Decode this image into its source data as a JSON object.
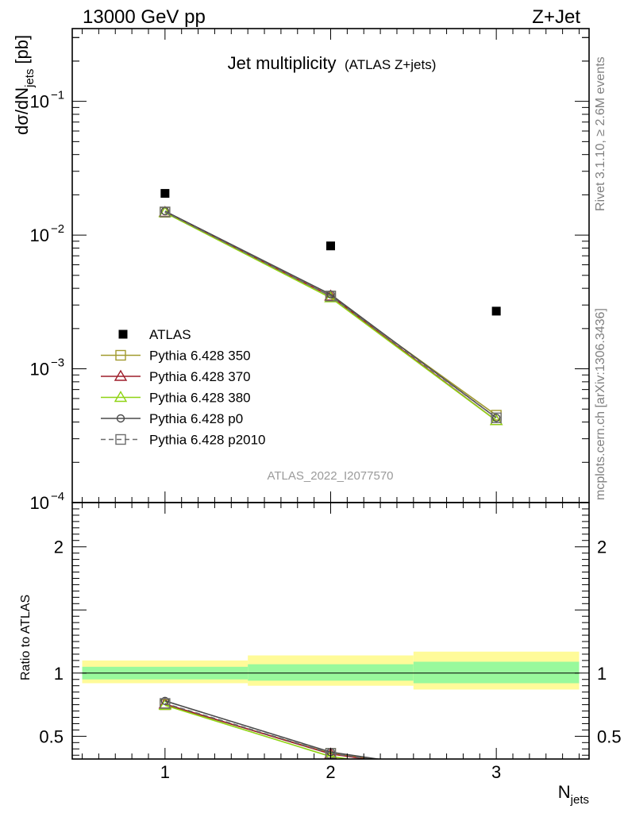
{
  "header": {
    "energy_label": "13000 GeV pp",
    "process_label": "Z+Jet"
  },
  "side_labels": {
    "rivet": "Rivet 3.1.10, ≥ 2.6M events",
    "mcplots": "mcplots.cern.ch [arXiv:1306.3436]"
  },
  "chart_data": {
    "type": "scatter",
    "title": "Jet multiplicity",
    "subtitle": "(ATLAS Z+jets)",
    "analysis_id": "ATLAS_2022_I2077570",
    "xlabel": "N",
    "xlabel_sub": "jets",
    "ylabel_pre": "dσ/dN",
    "ylabel_sub": "jets",
    "ylabel_post": "[pb]",
    "ratio_ylabel": "Ratio to ATLAS",
    "x": [
      1,
      2,
      3
    ],
    "xlim": [
      0.44,
      3.56
    ],
    "ylim": [
      0.0001,
      0.35
    ],
    "yscale": "log",
    "ratio_ylim": [
      0.32,
      2.35
    ],
    "xticks": [
      "1",
      "2",
      "3"
    ],
    "yticks": [
      {
        "base": "10",
        "exp": "−4",
        "value": 0.0001
      },
      {
        "base": "10",
        "exp": "−3",
        "value": 0.001
      },
      {
        "base": "10",
        "exp": "−2",
        "value": 0.01
      },
      {
        "base": "10",
        "exp": "−1",
        "value": 0.1
      }
    ],
    "ratio_yticks": [
      "0.5",
      "1",
      "2"
    ],
    "bins": [
      [
        0.5,
        1.5
      ],
      [
        1.5,
        2.5
      ],
      [
        2.5,
        3.5
      ]
    ],
    "ratio_band_inner": [
      [
        0.95,
        1.05
      ],
      [
        0.94,
        1.07
      ],
      [
        0.92,
        1.09
      ]
    ],
    "ratio_band_outer": [
      [
        0.92,
        1.1
      ],
      [
        0.9,
        1.14
      ],
      [
        0.87,
        1.17
      ]
    ],
    "legend_position": "lower-left",
    "data_series": {
      "name": "ATLAS",
      "values": [
        0.0205,
        0.0083,
        0.0027
      ],
      "color": "#000000"
    },
    "series": [
      {
        "name": "Pythia 6.428 350",
        "values": [
          0.0148,
          0.0035,
          0.00045
        ],
        "ratio": [
          0.75,
          0.365
        ],
        "color": "#a19a2e",
        "marker": "square",
        "dash": "solid"
      },
      {
        "name": "Pythia 6.428 370",
        "values": [
          0.0148,
          0.0035,
          0.00041
        ],
        "ratio": [
          0.755,
          0.36
        ],
        "color": "#9e1d2a",
        "marker": "triangle",
        "dash": "solid"
      },
      {
        "name": "Pythia 6.428 380",
        "values": [
          0.0147,
          0.0034,
          0.00041
        ],
        "ratio": [
          0.745,
          0.34
        ],
        "color": "#8fd313",
        "marker": "triangle",
        "dash": "solid"
      },
      {
        "name": "Pythia 6.428 p0",
        "values": [
          0.0151,
          0.0036,
          0.00043
        ],
        "ratio": [
          0.78,
          0.375
        ],
        "color": "#4a4a4a",
        "marker": "circle",
        "dash": "solid"
      },
      {
        "name": "Pythia 6.428 p2010",
        "values": [
          0.0149,
          0.0035,
          0.00043
        ],
        "ratio": [
          0.76,
          0.365
        ],
        "color": "#6b6b6b",
        "marker": "square",
        "dash": "dashed"
      }
    ]
  }
}
